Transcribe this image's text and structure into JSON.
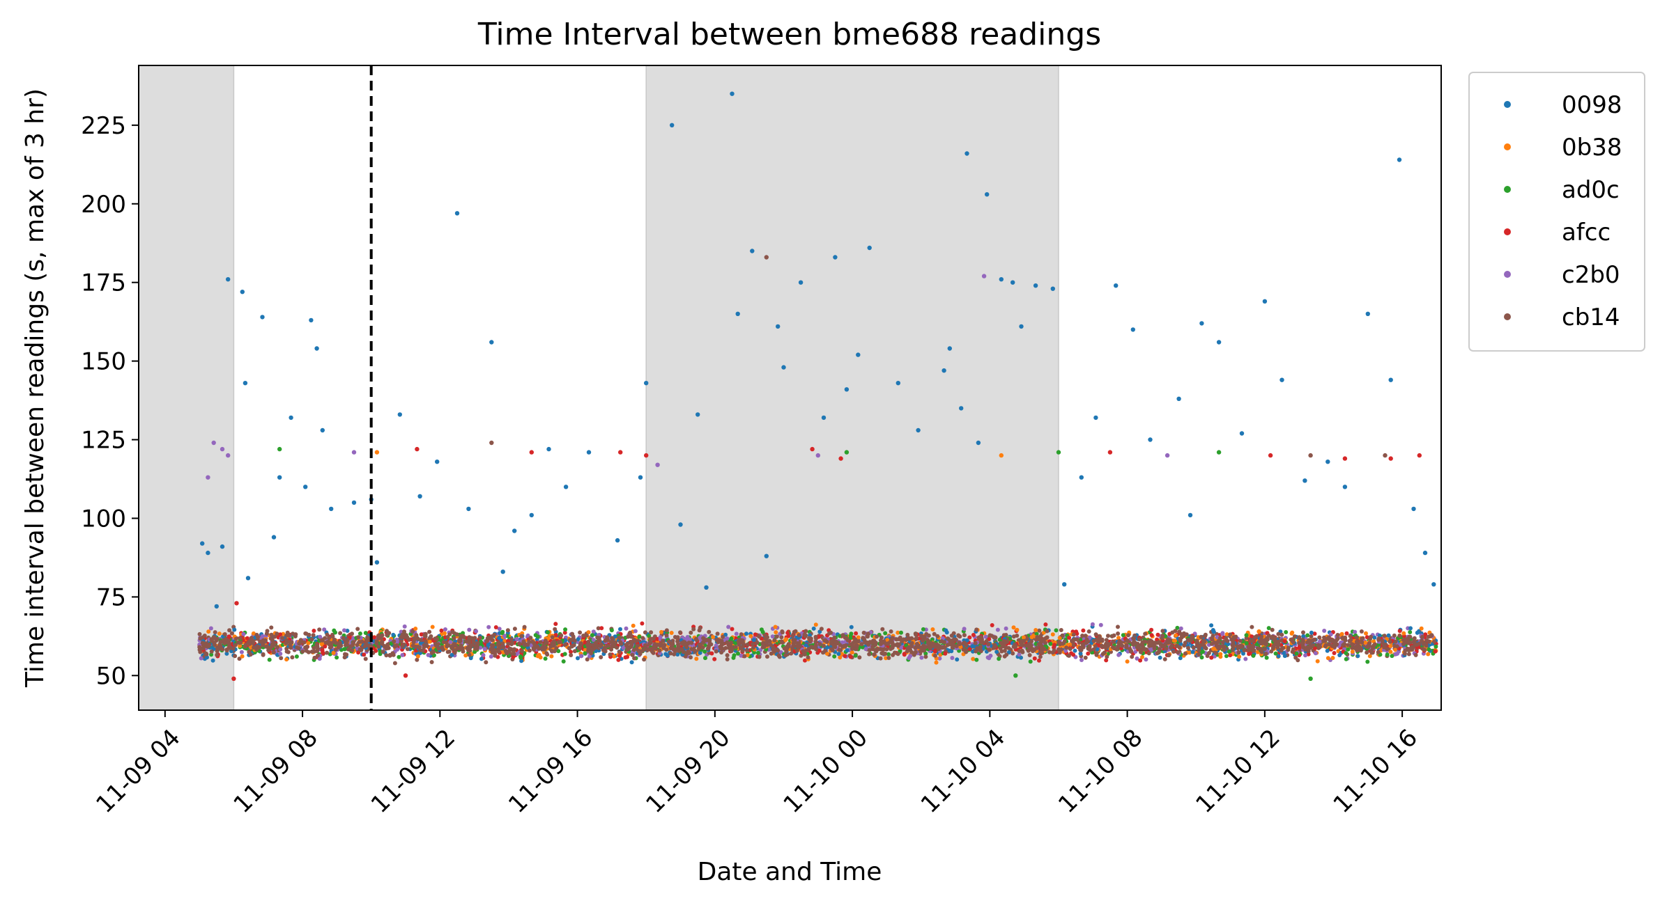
{
  "chart_data": {
    "type": "scatter",
    "title": "Time Interval between bme688 readings",
    "xlabel": "Date and Time",
    "ylabel": "Time interval between readings (s, max of 3 hr)",
    "x_axis_type": "datetime",
    "xlim": [
      "2024-11-09T03:14",
      "2024-11-10T17:08"
    ],
    "ylim": [
      39,
      244
    ],
    "x_ticks": [
      "11-09 04",
      "11-09 08",
      "11-09 12",
      "11-09 16",
      "11-09 20",
      "11-10 00",
      "11-10 04",
      "11-10 08",
      "11-10 12",
      "11-10 16"
    ],
    "x_tick_values": [
      "2024-11-09T04:00",
      "2024-11-09T08:00",
      "2024-11-09T12:00",
      "2024-11-09T16:00",
      "2024-11-09T20:00",
      "2024-11-10T00:00",
      "2024-11-10T04:00",
      "2024-11-10T08:00",
      "2024-11-10T12:00",
      "2024-11-10T16:00"
    ],
    "y_ticks": [
      50,
      75,
      100,
      125,
      150,
      175,
      200,
      225
    ],
    "shaded_regions": [
      {
        "start": "2024-11-09T03:14",
        "end": "2024-11-09T06:00",
        "color": "#dddddd"
      },
      {
        "start": "2024-11-09T18:00",
        "end": "2024-11-10T06:00",
        "color": "#dddddd"
      },
      {
        "start": "2024-11-10T18:00",
        "end": "2024-11-10T17:08",
        "color": "#dddddd"
      }
    ],
    "vertical_line": {
      "x": "2024-11-09T10:00",
      "style": "dashed",
      "color": "#000000"
    },
    "legend_position": "outside upper right",
    "grid": false,
    "baseline": {
      "x_start": "2024-11-09T05:00",
      "x_end": "2024-11-10T17:00",
      "center": 60,
      "spread": 4
    },
    "series": [
      {
        "name": "0098",
        "color": "#1f77b4",
        "values": [
          [
            "2024-11-09T05:05",
            92
          ],
          [
            "2024-11-09T05:15",
            89
          ],
          [
            "2024-11-09T05:30",
            72
          ],
          [
            "2024-11-09T05:40",
            91
          ],
          [
            "2024-11-09T05:50",
            176
          ],
          [
            "2024-11-09T06:15",
            172
          ],
          [
            "2024-11-09T06:20",
            143
          ],
          [
            "2024-11-09T06:25",
            81
          ],
          [
            "2024-11-09T06:50",
            164
          ],
          [
            "2024-11-09T07:10",
            94
          ],
          [
            "2024-11-09T07:20",
            113
          ],
          [
            "2024-11-09T07:40",
            132
          ],
          [
            "2024-11-09T08:05",
            110
          ],
          [
            "2024-11-09T08:15",
            163
          ],
          [
            "2024-11-09T08:25",
            154
          ],
          [
            "2024-11-09T08:35",
            128
          ],
          [
            "2024-11-09T08:50",
            103
          ],
          [
            "2024-11-09T09:30",
            105
          ],
          [
            "2024-11-09T10:00",
            106
          ],
          [
            "2024-11-09T10:10",
            86
          ],
          [
            "2024-11-09T10:50",
            133
          ],
          [
            "2024-11-09T11:25",
            107
          ],
          [
            "2024-11-09T11:55",
            118
          ],
          [
            "2024-11-09T12:30",
            197
          ],
          [
            "2024-11-09T12:50",
            103
          ],
          [
            "2024-11-09T13:30",
            156
          ],
          [
            "2024-11-09T13:50",
            83
          ],
          [
            "2024-11-09T14:10",
            96
          ],
          [
            "2024-11-09T14:40",
            101
          ],
          [
            "2024-11-09T15:10",
            122
          ],
          [
            "2024-11-09T15:40",
            110
          ],
          [
            "2024-11-09T16:20",
            121
          ],
          [
            "2024-11-09T17:10",
            93
          ],
          [
            "2024-11-09T17:50",
            113
          ],
          [
            "2024-11-09T18:00",
            143
          ],
          [
            "2024-11-09T18:45",
            225
          ],
          [
            "2024-11-09T19:00",
            98
          ],
          [
            "2024-11-09T19:30",
            133
          ],
          [
            "2024-11-09T19:45",
            78
          ],
          [
            "2024-11-09T20:30",
            235
          ],
          [
            "2024-11-09T20:40",
            165
          ],
          [
            "2024-11-09T21:05",
            185
          ],
          [
            "2024-11-09T21:30",
            88
          ],
          [
            "2024-11-09T21:50",
            161
          ],
          [
            "2024-11-09T22:00",
            148
          ],
          [
            "2024-11-09T22:30",
            175
          ],
          [
            "2024-11-09T23:10",
            132
          ],
          [
            "2024-11-09T23:30",
            183
          ],
          [
            "2024-11-09T23:50",
            141
          ],
          [
            "2024-11-10T00:10",
            152
          ],
          [
            "2024-11-10T00:30",
            186
          ],
          [
            "2024-11-10T01:20",
            143
          ],
          [
            "2024-11-10T01:55",
            128
          ],
          [
            "2024-11-10T02:40",
            147
          ],
          [
            "2024-11-10T02:50",
            154
          ],
          [
            "2024-11-10T03:10",
            135
          ],
          [
            "2024-11-10T03:20",
            216
          ],
          [
            "2024-11-10T03:40",
            124
          ],
          [
            "2024-11-10T03:55",
            203
          ],
          [
            "2024-11-10T04:20",
            176
          ],
          [
            "2024-11-10T04:40",
            175
          ],
          [
            "2024-11-10T04:55",
            161
          ],
          [
            "2024-11-10T05:20",
            174
          ],
          [
            "2024-11-10T05:50",
            173
          ],
          [
            "2024-11-10T06:10",
            79
          ],
          [
            "2024-11-10T06:40",
            113
          ],
          [
            "2024-11-10T07:05",
            132
          ],
          [
            "2024-11-10T07:40",
            174
          ],
          [
            "2024-11-10T08:10",
            160
          ],
          [
            "2024-11-10T08:40",
            125
          ],
          [
            "2024-11-10T09:30",
            138
          ],
          [
            "2024-11-10T09:50",
            101
          ],
          [
            "2024-11-10T10:10",
            162
          ],
          [
            "2024-11-10T10:40",
            156
          ],
          [
            "2024-11-10T11:20",
            127
          ],
          [
            "2024-11-10T12:00",
            169
          ],
          [
            "2024-11-10T12:30",
            144
          ],
          [
            "2024-11-10T13:10",
            112
          ],
          [
            "2024-11-10T13:50",
            118
          ],
          [
            "2024-11-10T14:20",
            110
          ],
          [
            "2024-11-10T15:00",
            165
          ],
          [
            "2024-11-10T15:40",
            144
          ],
          [
            "2024-11-10T15:55",
            214
          ],
          [
            "2024-11-10T16:20",
            103
          ],
          [
            "2024-11-10T16:40",
            89
          ],
          [
            "2024-11-10T16:55",
            79
          ]
        ]
      },
      {
        "name": "0b38",
        "color": "#ff7f0e",
        "values": [
          [
            "2024-11-09T10:10",
            121
          ],
          [
            "2024-11-10T04:20",
            120
          ],
          [
            "2024-11-10T11:50",
            64
          ]
        ]
      },
      {
        "name": "ad0c",
        "color": "#2ca02c",
        "values": [
          [
            "2024-11-09T07:20",
            122
          ],
          [
            "2024-11-09T23:50",
            121
          ],
          [
            "2024-11-10T04:45",
            50
          ],
          [
            "2024-11-10T06:00",
            121
          ],
          [
            "2024-11-10T10:40",
            121
          ],
          [
            "2024-11-10T13:20",
            49
          ]
        ]
      },
      {
        "name": "afcc",
        "color": "#d62728",
        "values": [
          [
            "2024-11-09T06:00",
            49
          ],
          [
            "2024-11-09T06:05",
            73
          ],
          [
            "2024-11-09T11:00",
            50
          ],
          [
            "2024-11-09T11:20",
            122
          ],
          [
            "2024-11-09T14:40",
            121
          ],
          [
            "2024-11-09T17:15",
            121
          ],
          [
            "2024-11-09T18:00",
            120
          ],
          [
            "2024-11-09T22:50",
            122
          ],
          [
            "2024-11-09T23:40",
            119
          ],
          [
            "2024-11-10T07:30",
            121
          ],
          [
            "2024-11-10T12:10",
            120
          ],
          [
            "2024-11-10T14:20",
            119
          ],
          [
            "2024-11-10T15:40",
            119
          ],
          [
            "2024-11-10T16:30",
            120
          ]
        ]
      },
      {
        "name": "c2b0",
        "color": "#9467bd",
        "values": [
          [
            "2024-11-09T05:15",
            113
          ],
          [
            "2024-11-09T05:25",
            124
          ],
          [
            "2024-11-09T05:40",
            122
          ],
          [
            "2024-11-09T05:50",
            120
          ],
          [
            "2024-11-09T09:30",
            121
          ],
          [
            "2024-11-09T18:20",
            117
          ],
          [
            "2024-11-09T23:00",
            120
          ],
          [
            "2024-11-10T03:50",
            177
          ],
          [
            "2024-11-10T09:10",
            120
          ]
        ]
      },
      {
        "name": "cb14",
        "color": "#8c564b",
        "values": [
          [
            "2024-11-09T13:30",
            124
          ],
          [
            "2024-11-09T21:30",
            183
          ],
          [
            "2024-11-10T13:20",
            120
          ],
          [
            "2024-11-10T15:30",
            120
          ]
        ]
      }
    ]
  }
}
